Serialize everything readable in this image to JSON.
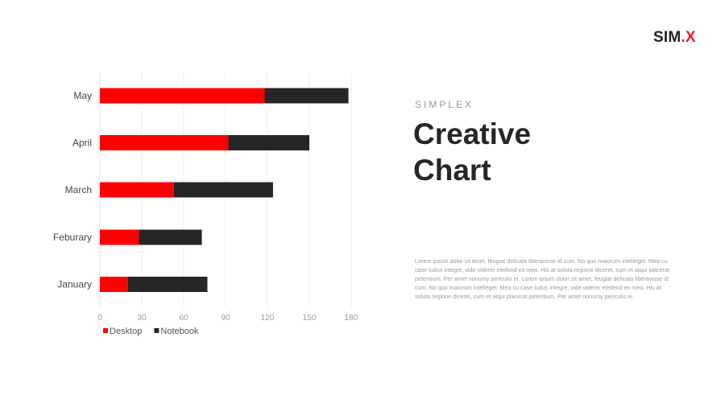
{
  "brand": {
    "name": "SIM",
    "accent_char": ".X"
  },
  "heading": {
    "eyebrow": "SIMPLEX",
    "title_line1": "Creative",
    "title_line2": "Chart"
  },
  "body_text": "Lorem ipsum dolor sit amet, feugiat delicata liberavisse id cum. No quo maiorum intelleget. Mea cu case ludus integre, vide viderer eleifend ex mea. His at soluta regione diceret, cum et atqui placerat petentium. Per amet nonumy periculis ei. Lorem ipsum dolor sit amet, feugiat delicata liberavisse id cum. No quo maiorum intelleget. Mea cu case ludus integre, vide viderer eleifend ex mea. His at soluta regione diceret, cum et atqui placerat petentium. Per amet nonumy periculis ei.",
  "colors": {
    "desktop": "#ff0000",
    "notebook": "#262626",
    "grid": "#eeeeee",
    "accent": "#ee1c24"
  },
  "chart_data": {
    "type": "bar",
    "orientation": "horizontal",
    "stacked": true,
    "categories": [
      "January",
      "Feburary",
      "March",
      "April",
      "May"
    ],
    "series": [
      {
        "name": "Desktop",
        "values": [
          20,
          28,
          53,
          92,
          118
        ]
      },
      {
        "name": "Notebook",
        "values": [
          57,
          45,
          71,
          58,
          60
        ]
      }
    ],
    "xlim": [
      0,
      180
    ],
    "xticks": [
      "0",
      "30",
      "60",
      "90",
      "120",
      "150",
      "180"
    ],
    "grid": true,
    "legend_position": "bottom-left"
  }
}
